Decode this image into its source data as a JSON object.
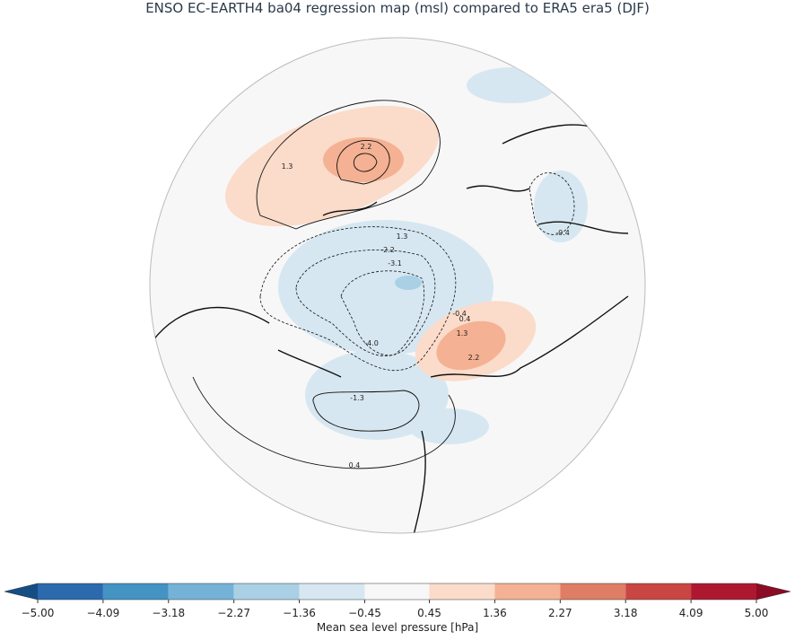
{
  "title": "ENSO EC-EARTH4 ba04 regression map (msl) compared to ERA5 era5 (DJF)",
  "map": {
    "contour_labels": [
      "2.2",
      "1.3",
      "1.3",
      "-2.2",
      "-3.1",
      "-4.0",
      "-0.4",
      "0.4",
      "1.3",
      "2.2",
      "-1.3",
      "0.4",
      "-0.4"
    ]
  },
  "colorbar": {
    "label": "Mean sea level pressure [hPa]",
    "ticks": [
      {
        "value": -5.0,
        "label": "−5.00"
      },
      {
        "value": -4.09,
        "label": "−4.09"
      },
      {
        "value": -3.18,
        "label": "−3.18"
      },
      {
        "value": -2.27,
        "label": "−2.27"
      },
      {
        "value": -1.36,
        "label": "−1.36"
      },
      {
        "value": -0.45,
        "label": "−0.45"
      },
      {
        "value": 0.45,
        "label": "0.45"
      },
      {
        "value": 1.36,
        "label": "1.36"
      },
      {
        "value": 2.27,
        "label": "2.27"
      },
      {
        "value": 3.18,
        "label": "3.18"
      },
      {
        "value": 4.09,
        "label": "4.09"
      },
      {
        "value": 5.0,
        "label": "5.00"
      }
    ],
    "colors": [
      "#2a6aad",
      "#4393c3",
      "#75b2d7",
      "#a9d0e5",
      "#d6e7f1",
      "#f7f7f7",
      "#fbdbc9",
      "#f4b193",
      "#e07d65",
      "#c94643",
      "#ad1830"
    ],
    "extend_colors": [
      "#154d85",
      "#8c0b25"
    ]
  }
}
